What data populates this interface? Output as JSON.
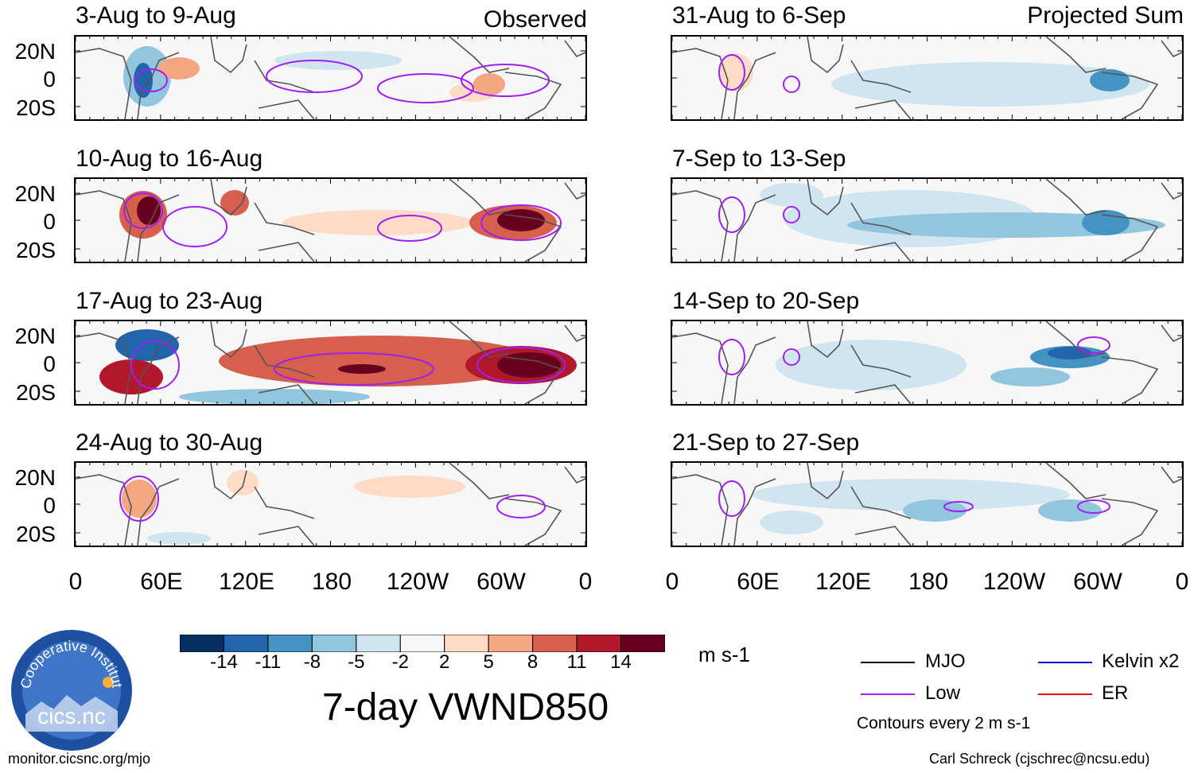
{
  "chart_data": {
    "type": "heatmap",
    "title": "7-day VWND850",
    "units": "m s-1",
    "colorbar": {
      "ticks": [
        "-14",
        "-11",
        "-8",
        "-5",
        "-2",
        "2",
        "5",
        "8",
        "11",
        "14"
      ],
      "colors": [
        "#053061",
        "#2166ac",
        "#4393c3",
        "#92c5de",
        "#d1e5f0",
        "#f7f7f7",
        "#fddbc7",
        "#f4a582",
        "#d6604d",
        "#b2182b",
        "#67001f"
      ]
    },
    "lat_ticks": [
      "20N",
      "0",
      "20S"
    ],
    "lon_ticks": [
      "0",
      "60E",
      "120E",
      "180",
      "120W",
      "60W",
      "0"
    ],
    "columns": [
      {
        "header": "Observed",
        "panels": [
          {
            "title": "3-Aug to 9-Aug"
          },
          {
            "title": "10-Aug to 16-Aug"
          },
          {
            "title": "17-Aug to 23-Aug"
          },
          {
            "title": "24-Aug to 30-Aug"
          }
        ]
      },
      {
        "header": "Projected Sum",
        "panels": [
          {
            "title": "31-Aug to 6-Sep"
          },
          {
            "title": "7-Sep to 13-Sep"
          },
          {
            "title": "14-Sep to 20-Sep"
          },
          {
            "title": "21-Sep to 27-Sep"
          }
        ]
      }
    ],
    "legend": [
      {
        "name": "MJO",
        "color": "#000000"
      },
      {
        "name": "Kelvin x2",
        "color": "#1010d0"
      },
      {
        "name": "Low",
        "color": "#a020f0"
      },
      {
        "name": "ER",
        "color": "#e01010"
      }
    ],
    "contour_note": "Contours every 2 m s-1"
  },
  "logo": {
    "org_text": "Cooperative Institute for Climate and Satellites",
    "brand": "cics.nc"
  },
  "footer": {
    "left": "monitor.cicsnc.org/mjo",
    "right": "Carl Schreck (cjschrec@ncsu.edu)"
  }
}
